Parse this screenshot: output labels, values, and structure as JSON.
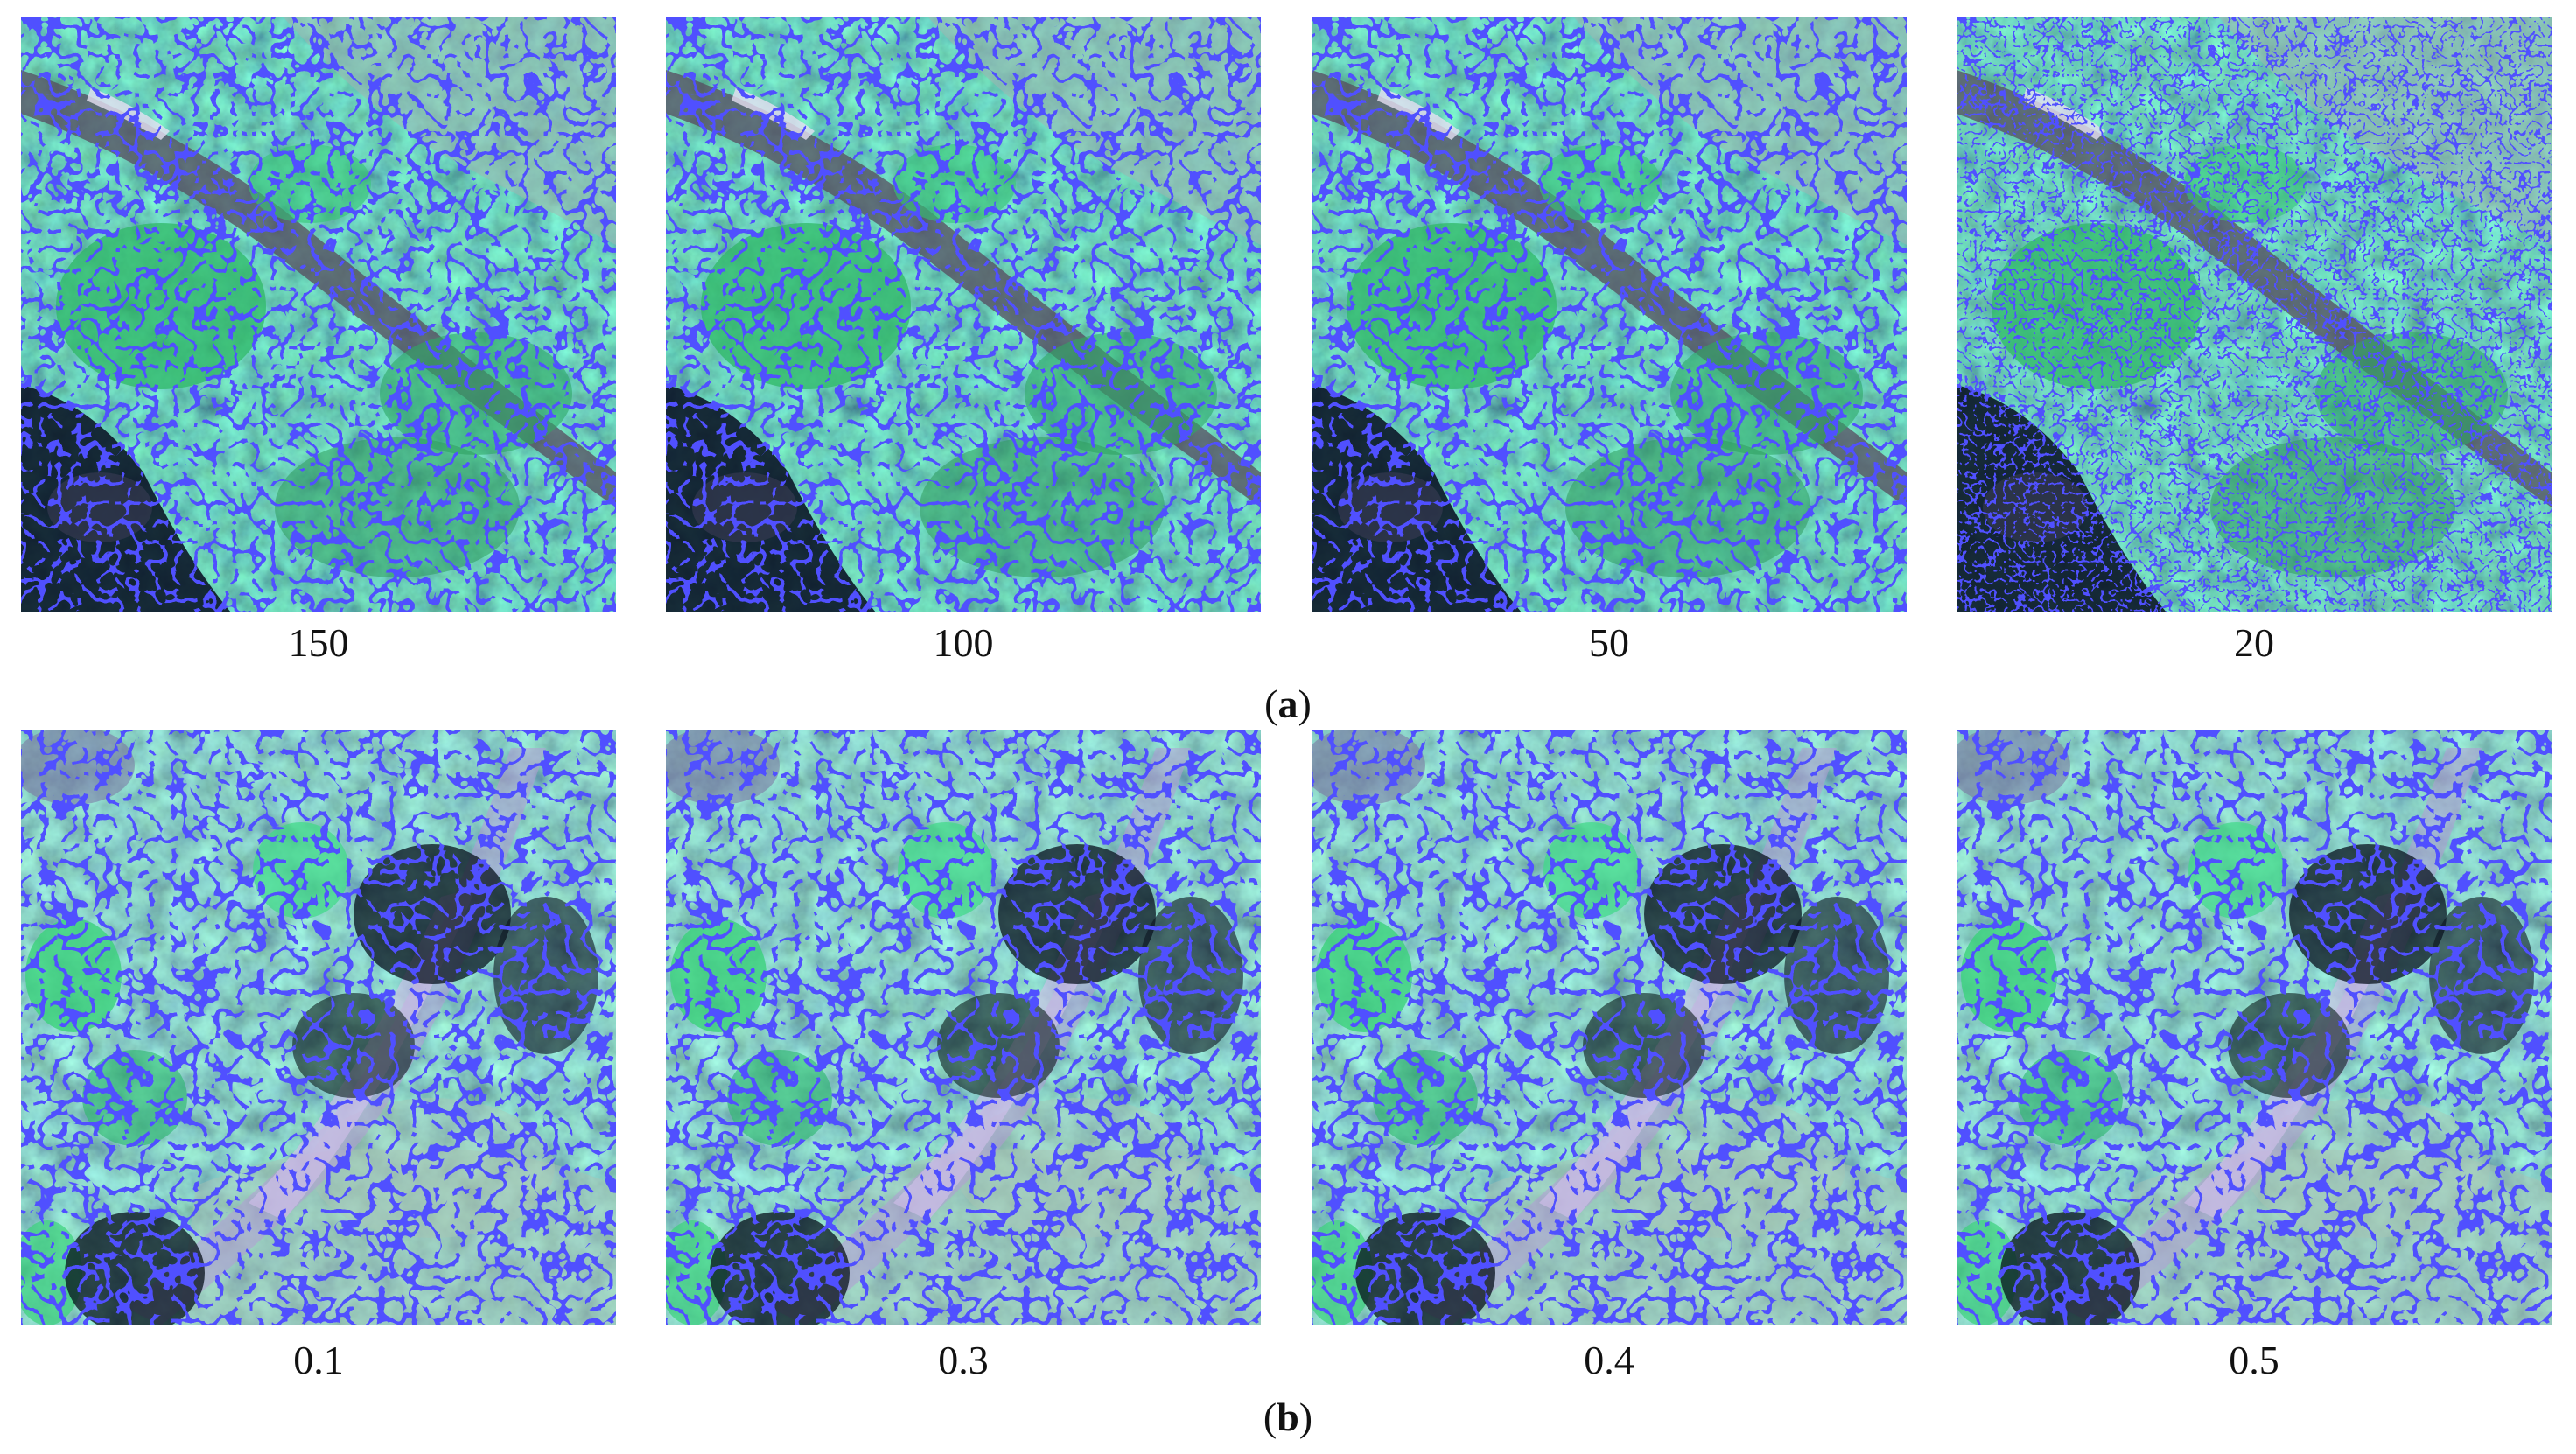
{
  "figure": {
    "row_a": {
      "label_open": "(",
      "label_letter": "a",
      "label_close": ")",
      "panels": [
        "150",
        "100",
        "50",
        "20"
      ]
    },
    "row_b": {
      "label_open": "(",
      "label_letter": "b",
      "label_close": ")",
      "panels": [
        "0.1",
        "0.3",
        "0.4",
        "0.5"
      ]
    },
    "colors": {
      "segment_boundary": "#1414ff",
      "vegetation_bright": "#3fd27a",
      "vegetation_dark": "#0f3a26",
      "shadow": "#070d1c",
      "bare_ground": "#9a8fb8"
    }
  }
}
